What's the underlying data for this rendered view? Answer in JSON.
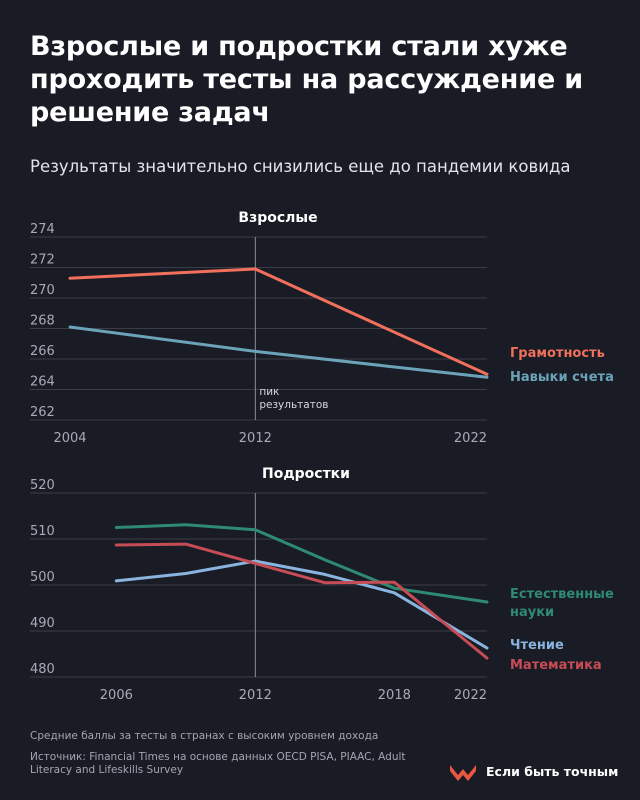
{
  "header": {
    "title": "Взрослые и подростки стали хуже проходить тесты на рассуждение и решение задач",
    "subtitle": "Результаты значительно снизились еще до пандемии ковида"
  },
  "footer": {
    "note": "Средние баллы за тесты в странах с высоким уровнем дохода",
    "source": "Источник: Financial Times на основе данных OECD PISA, PIAAC, Adult Literacy and Lifeskills Survey",
    "brand": "Если быть точным",
    "brand_color": "#e8573f"
  },
  "chart_data": [
    {
      "type": "line",
      "title": "Взрослые",
      "x": [
        2004,
        2012,
        2022
      ],
      "xticks": [
        "2004",
        "2012",
        "2022"
      ],
      "yticks": [
        262,
        264,
        266,
        268,
        270,
        272,
        274
      ],
      "ylim": [
        262,
        274
      ],
      "grid": true,
      "marker_x": 2012,
      "marker_label": [
        "пик",
        "результатов"
      ],
      "series": [
        {
          "name": "Грамотность",
          "color": "#f0705c",
          "points": [
            [
              2004,
              271.3
            ],
            [
              2012,
              271.9
            ],
            [
              2022,
              265.0
            ]
          ]
        },
        {
          "name": "Навыки счета",
          "color": "#6ba3b8",
          "points": [
            [
              2004,
              268.1
            ],
            [
              2012,
              266.5
            ],
            [
              2022,
              264.8
            ]
          ]
        }
      ]
    },
    {
      "type": "line",
      "title": "Подростки",
      "x": [
        2006,
        2009,
        2012,
        2015,
        2018,
        2022
      ],
      "xticks": [
        "2006",
        "2012",
        "2018",
        "2022"
      ],
      "yticks": [
        480,
        490,
        500,
        510,
        520
      ],
      "ylim": [
        480,
        520
      ],
      "grid": true,
      "marker_x": 2012,
      "series": [
        {
          "name": "Естественные науки",
          "label_lines": [
            "Естественные",
            "науки"
          ],
          "color": "#2f8a74",
          "points": [
            [
              2006,
              512.5
            ],
            [
              2009,
              513.1
            ],
            [
              2012,
              512.0
            ],
            [
              2015,
              505.5
            ],
            [
              2018,
              499.3
            ],
            [
              2022,
              496.3
            ]
          ]
        },
        {
          "name": "Чтение",
          "color": "#8ab4e0",
          "points": [
            [
              2006,
              500.9
            ],
            [
              2009,
              502.5
            ],
            [
              2012,
              505.2
            ],
            [
              2015,
              502.3
            ],
            [
              2018,
              498.3
            ],
            [
              2022,
              486.3
            ]
          ]
        },
        {
          "name": "Математика",
          "color": "#c64c55",
          "points": [
            [
              2006,
              508.7
            ],
            [
              2009,
              508.9
            ],
            [
              2012,
              504.7
            ],
            [
              2015,
              500.5
            ],
            [
              2018,
              500.6
            ],
            [
              2022,
              484.1
            ]
          ]
        }
      ]
    }
  ]
}
